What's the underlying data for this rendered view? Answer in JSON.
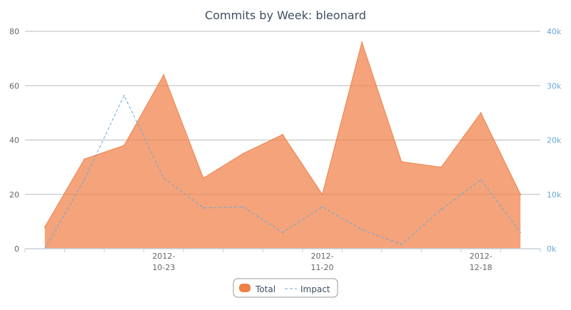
{
  "chart_data": {
    "type": "area",
    "title": "Commits by Week: bleonard",
    "categories": [
      "",
      "",
      "",
      "2012-10-23",
      "",
      "",
      "",
      "2012-11-20",
      "",
      "",
      "",
      "2012-12-18",
      ""
    ],
    "x_tick_labels": [
      {
        "index": 3,
        "line1": "2012-",
        "line2": "10-23"
      },
      {
        "index": 7,
        "line1": "2012-",
        "line2": "11-20"
      },
      {
        "index": 11,
        "line1": "2012-",
        "line2": "12-18"
      }
    ],
    "series": [
      {
        "name": "Total",
        "type": "area",
        "axis": "left",
        "color": "#f08048",
        "values": [
          8,
          33,
          38,
          64,
          26,
          35,
          42,
          20,
          76,
          32,
          30,
          50,
          20
        ]
      },
      {
        "name": "Impact",
        "type": "line",
        "axis": "right",
        "color": "#6aa8d8",
        "values": [
          0,
          12700,
          28200,
          13000,
          7500,
          7700,
          3000,
          7700,
          3500,
          800,
          7200,
          12700,
          3000
        ]
      }
    ],
    "left_axis": {
      "ylim": [
        0,
        80
      ],
      "ticks": [
        "0",
        "20",
        "40",
        "60",
        "80"
      ]
    },
    "right_axis": {
      "ylim": [
        0,
        40000
      ],
      "ticks": [
        "0k",
        "10k",
        "20k",
        "30k",
        "40k"
      ]
    },
    "grid": true,
    "legend": {
      "position": "bottom",
      "items": [
        "Total",
        "Impact"
      ]
    }
  }
}
